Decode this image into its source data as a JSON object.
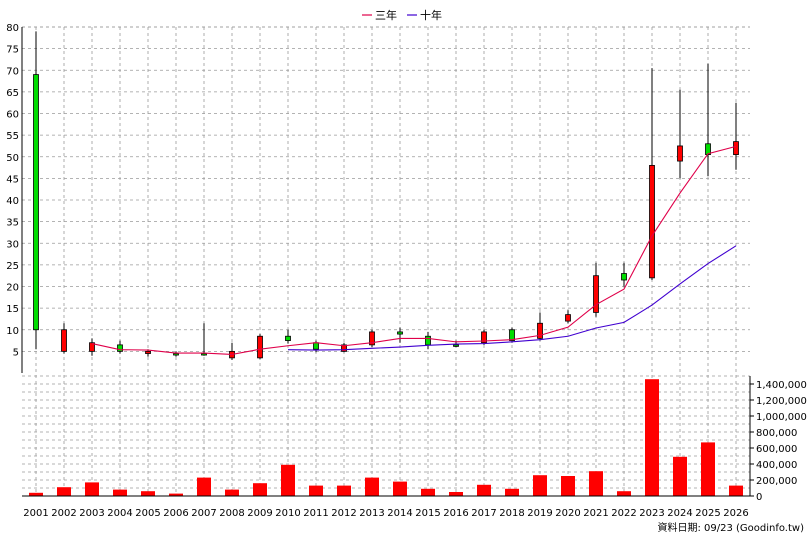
{
  "chart_data": {
    "type": "candlestick",
    "legend": [
      {
        "name": "三年",
        "color": "#e0004a"
      },
      {
        "name": "十年",
        "color": "#4000d0"
      }
    ],
    "years": [
      "2001",
      "2002",
      "2003",
      "2004",
      "2005",
      "2006",
      "2007",
      "2008",
      "2009",
      "2010",
      "2011",
      "2012",
      "2013",
      "2014",
      "2015",
      "2016",
      "2017",
      "2018",
      "2019",
      "2020",
      "2021",
      "2022",
      "2023",
      "2024",
      "2025",
      "2026"
    ],
    "price_axis": {
      "min": 0,
      "max": 80,
      "ticks": [
        5,
        10,
        15,
        20,
        25,
        30,
        35,
        40,
        45,
        50,
        55,
        60,
        65,
        70,
        75,
        80
      ],
      "grid": true
    },
    "volume_axis": {
      "min": 0,
      "max": 1500000,
      "ticks": [
        "0",
        "200,000",
        "400,000",
        "600,000",
        "800,000",
        "1,000,000",
        "1,200,000",
        "1,400,000"
      ],
      "tick_values": [
        0,
        200000,
        400000,
        600000,
        800000,
        1000000,
        1200000,
        1400000
      ],
      "grid": true
    },
    "candles": [
      {
        "open": 10,
        "close": 69,
        "high": 79,
        "low": 5.5
      },
      {
        "open": 10,
        "close": 5,
        "high": 11.5,
        "low": 4.5
      },
      {
        "open": 7,
        "close": 5,
        "high": 8,
        "low": 4
      },
      {
        "open": 5,
        "close": 6.5,
        "high": 7.5,
        "low": 4.5
      },
      {
        "open": 5,
        "close": 4.5,
        "high": 5.5,
        "low": 3.8
      },
      {
        "open": 4.5,
        "close": 4.5,
        "high": 5,
        "low": 3.8
      },
      {
        "open": 4.5,
        "close": 4.5,
        "high": 11.5,
        "low": 4
      },
      {
        "open": 5,
        "close": 3.5,
        "high": 7,
        "low": 3
      },
      {
        "open": 8.5,
        "close": 3.5,
        "high": 9,
        "low": 3.2
      },
      {
        "open": 7.5,
        "close": 8.5,
        "high": 10,
        "low": 6.8
      },
      {
        "open": 5.5,
        "close": 7,
        "high": 7.5,
        "low": 4.8
      },
      {
        "open": 6.5,
        "close": 5,
        "high": 7,
        "low": 4.8
      },
      {
        "open": 9.5,
        "close": 6.5,
        "high": 10,
        "low": 6
      },
      {
        "open": 9,
        "close": 9.5,
        "high": 10.5,
        "low": 7
      },
      {
        "open": 6.5,
        "close": 8.5,
        "high": 9.5,
        "low": 5.5
      },
      {
        "open": 6.5,
        "close": 6.5,
        "high": 7.5,
        "low": 6
      },
      {
        "open": 9.5,
        "close": 7,
        "high": 10,
        "low": 6.5
      },
      {
        "open": 7.5,
        "close": 10,
        "high": 10.5,
        "low": 7
      },
      {
        "open": 11.5,
        "close": 8,
        "high": 14,
        "low": 7.5
      },
      {
        "open": 13.5,
        "close": 12,
        "high": 14.5,
        "low": 11.5
      },
      {
        "open": 22.5,
        "close": 14,
        "high": 25.5,
        "low": 13
      },
      {
        "open": 21.5,
        "close": 23,
        "high": 25.5,
        "low": 20
      },
      {
        "open": 48,
        "close": 22,
        "high": 70.5,
        "low": 21.5
      },
      {
        "open": 52.5,
        "close": 49,
        "high": 65.5,
        "low": 45
      },
      {
        "open": 50.5,
        "close": 53,
        "high": 71.5,
        "low": 45.5
      },
      {
        "open": 53.5,
        "close": 50.5,
        "high": 62.5,
        "low": 47
      }
    ],
    "ma_3yr": [
      null,
      null,
      6.8,
      5.4,
      5.3,
      4.6,
      4.6,
      4.3,
      5.5,
      6.3,
      7.0,
      6.3,
      7.0,
      8.0,
      8.0,
      7.2,
      7.4,
      7.7,
      8.7,
      10.6,
      15.8,
      19.4,
      31.7,
      41.6,
      50.7,
      52.4
    ],
    "ma_10yr": [
      null,
      null,
      null,
      null,
      null,
      null,
      null,
      null,
      null,
      5.4,
      5.3,
      5.4,
      5.7,
      6.0,
      6.4,
      6.7,
      6.8,
      7.2,
      7.7,
      8.5,
      10.4,
      11.7,
      15.7,
      20.6,
      25.3,
      29.4
    ],
    "volume": [
      40000,
      110000,
      170000,
      80000,
      60000,
      30000,
      230000,
      80000,
      160000,
      390000,
      130000,
      130000,
      230000,
      180000,
      90000,
      50000,
      140000,
      90000,
      260000,
      250000,
      310000,
      60000,
      1460000,
      490000,
      670000,
      130000
    ],
    "credit": "資料日期: 09/23 (Goodinfo.tw)"
  }
}
